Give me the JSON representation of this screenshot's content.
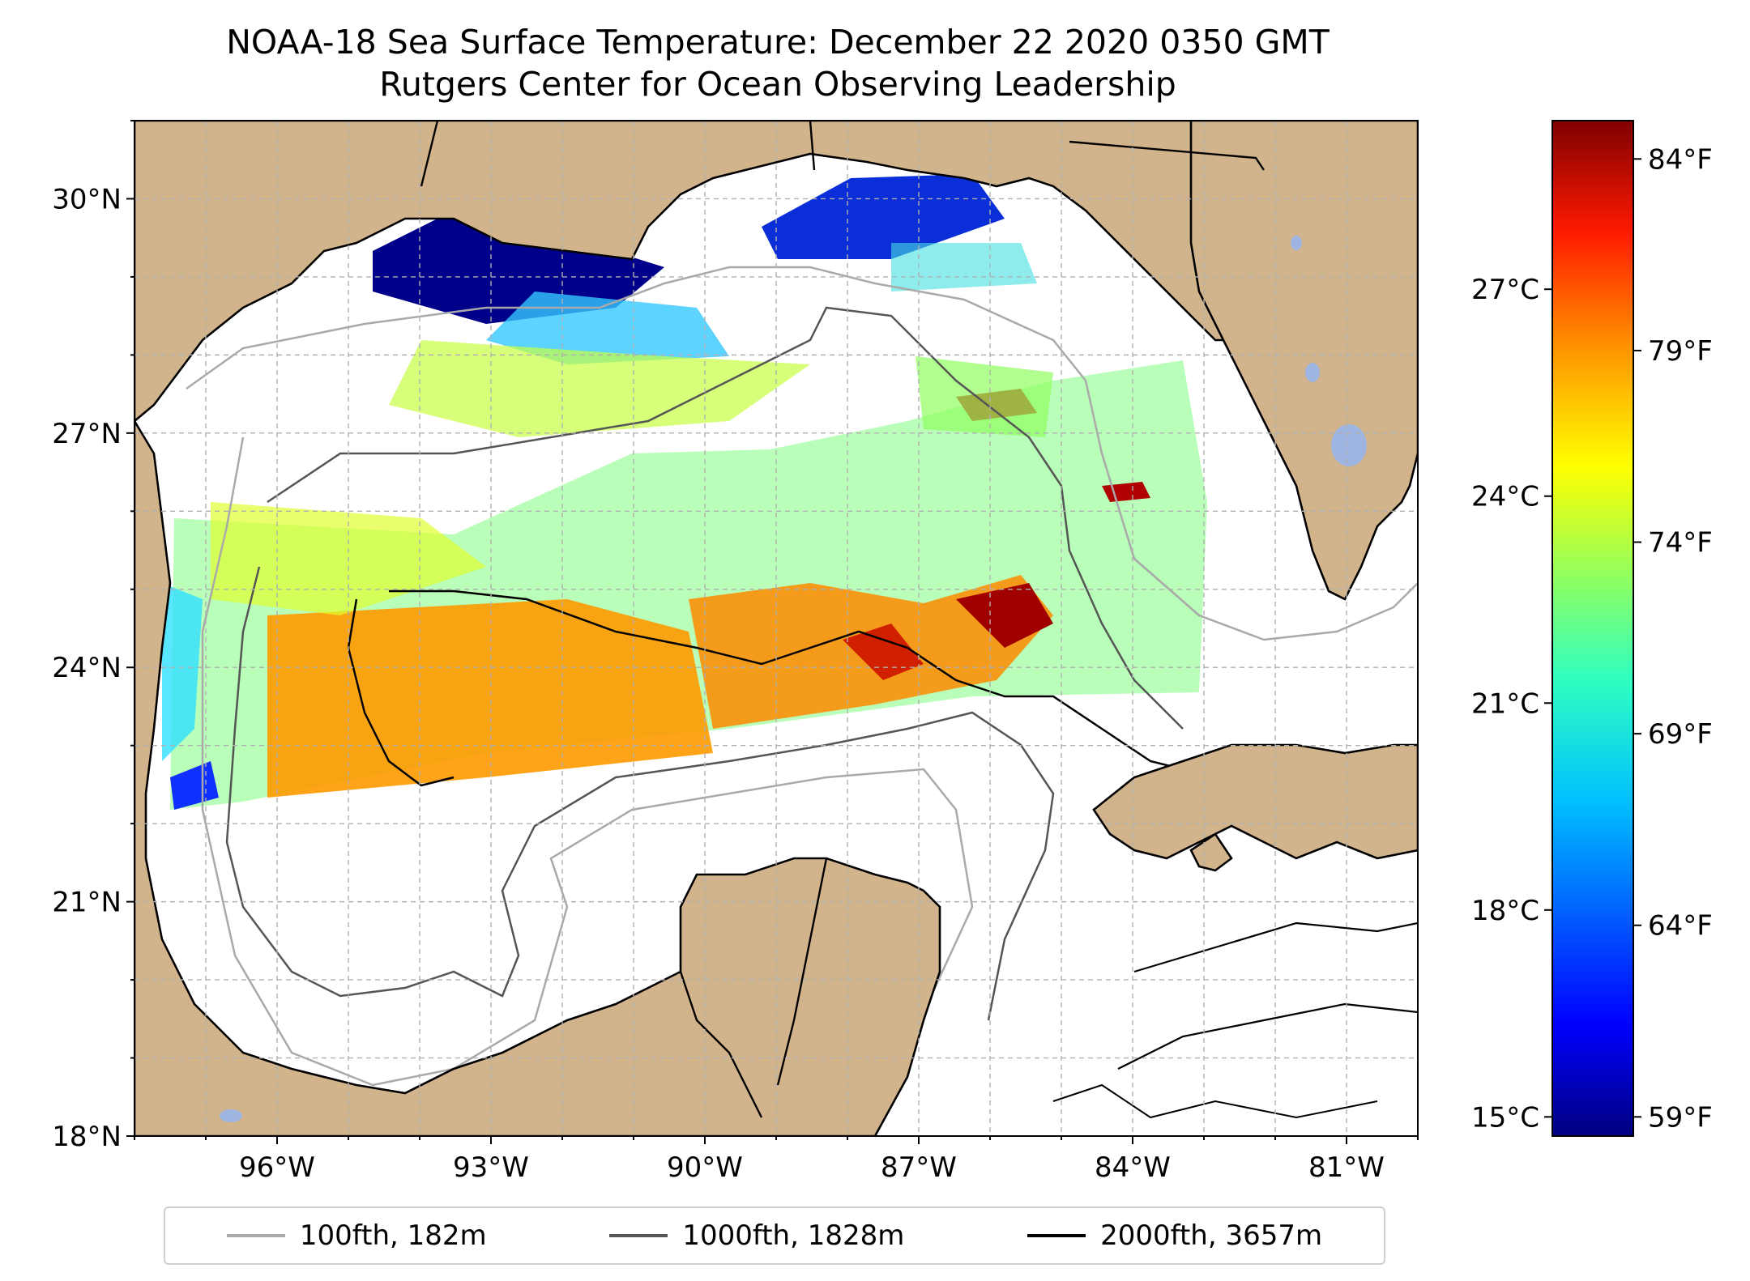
{
  "title": {
    "line1": "NOAA-18 Sea Surface Temperature: December 22 2020 0350 GMT",
    "line2": "Rutgers Center for Ocean Observing Leadership"
  },
  "map": {
    "lon_range": [
      -98,
      -80
    ],
    "lat_range": [
      18,
      31
    ],
    "lat_ticks": [
      {
        "value": 18,
        "label": "18°N"
      },
      {
        "value": 21,
        "label": "21°N"
      },
      {
        "value": 24,
        "label": "24°N"
      },
      {
        "value": 27,
        "label": "27°N"
      },
      {
        "value": 30,
        "label": "30°N"
      }
    ],
    "lon_ticks": [
      {
        "value": -96,
        "label": "96°W"
      },
      {
        "value": -93,
        "label": "93°W"
      },
      {
        "value": -90,
        "label": "90°W"
      },
      {
        "value": -87,
        "label": "87°W"
      },
      {
        "value": -84,
        "label": "84°W"
      },
      {
        "value": -81,
        "label": "81°W"
      }
    ],
    "land_color": "#d2b48c",
    "water_feature_color": "#9db5e0"
  },
  "colorbar": {
    "celsius_ticks": [
      {
        "value": 15,
        "label": "15°C"
      },
      {
        "value": 18,
        "label": "18°C"
      },
      {
        "value": 21,
        "label": "21°C"
      },
      {
        "value": 24,
        "label": "24°C"
      },
      {
        "value": 27,
        "label": "27°C"
      }
    ],
    "fahrenheit_ticks": [
      {
        "value": 59,
        "label": "59°F"
      },
      {
        "value": 64,
        "label": "64°F"
      },
      {
        "value": 69,
        "label": "69°F"
      },
      {
        "value": 74,
        "label": "74°F"
      },
      {
        "value": 79,
        "label": "79°F"
      },
      {
        "value": 84,
        "label": "84°F"
      }
    ],
    "range_f": [
      58.5,
      85.0
    ],
    "colors": [
      "#00007f",
      "#0000ff",
      "#0080ff",
      "#00e5ff",
      "#40ffb0",
      "#a0ff50",
      "#ffff00",
      "#ffa000",
      "#ff3000",
      "#7f0000"
    ]
  },
  "legend": [
    {
      "label": "100fth, 182m",
      "color": "#a9a9a9"
    },
    {
      "label": "1000fth, 1828m",
      "color": "#555555"
    },
    {
      "label": "2000fth, 3657m",
      "color": "#000000"
    }
  ]
}
